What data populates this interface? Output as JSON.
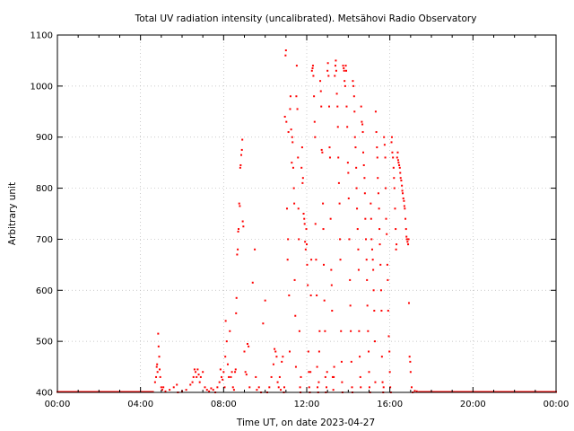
{
  "chart_data": {
    "type": "scatter",
    "title": "Total UV radiation intensity (uncalibrated). Metsähovi Radio Observatory",
    "xlabel": "Time UT, on date 2023-04-27",
    "ylabel": "Arbitrary unit",
    "xlim_hours": [
      0,
      24
    ],
    "ylim": [
      400,
      1100
    ],
    "x_ticks": [
      {
        "hour": 0,
        "label": "00:00"
      },
      {
        "hour": 4,
        "label": "04:00"
      },
      {
        "hour": 8,
        "label": "08:00"
      },
      {
        "hour": 12,
        "label": "12:00"
      },
      {
        "hour": 16,
        "label": "16:00"
      },
      {
        "hour": 20,
        "label": "20:00"
      },
      {
        "hour": 24,
        "label": "00:00"
      }
    ],
    "y_ticks": [
      400,
      500,
      600,
      700,
      800,
      900,
      1000,
      1100
    ],
    "grid": true,
    "marker_color": "#ff0000",
    "baseline_value": 400,
    "baseline_intervals_hours": [
      [
        0,
        4.6
      ],
      [
        17.4,
        24
      ]
    ],
    "points": [
      [
        4.7,
        420
      ],
      [
        4.75,
        430
      ],
      [
        4.78,
        450
      ],
      [
        4.8,
        455
      ],
      [
        4.82,
        440
      ],
      [
        4.85,
        515
      ],
      [
        4.87,
        490
      ],
      [
        4.9,
        470
      ],
      [
        4.92,
        445
      ],
      [
        4.95,
        430
      ],
      [
        5.0,
        410
      ],
      [
        5.05,
        405
      ],
      [
        5.1,
        410
      ],
      [
        5.2,
        402
      ],
      [
        5.4,
        405
      ],
      [
        5.6,
        410
      ],
      [
        5.75,
        415
      ],
      [
        5.8,
        400
      ],
      [
        6.0,
        402
      ],
      [
        6.2,
        405
      ],
      [
        6.4,
        415
      ],
      [
        6.5,
        420
      ],
      [
        6.55,
        430
      ],
      [
        6.6,
        445
      ],
      [
        6.65,
        440
      ],
      [
        6.7,
        430
      ],
      [
        6.75,
        445
      ],
      [
        6.8,
        435
      ],
      [
        6.85,
        420
      ],
      [
        6.9,
        430
      ],
      [
        7.0,
        440
      ],
      [
        7.1,
        410
      ],
      [
        7.2,
        405
      ],
      [
        7.3,
        402
      ],
      [
        7.4,
        408
      ],
      [
        7.5,
        405
      ],
      [
        7.6,
        400
      ],
      [
        7.7,
        410
      ],
      [
        7.8,
        420
      ],
      [
        7.85,
        445
      ],
      [
        7.9,
        430
      ],
      [
        7.95,
        425
      ],
      [
        8.0,
        440
      ],
      [
        8.05,
        410
      ],
      [
        8.08,
        470
      ],
      [
        8.1,
        540
      ],
      [
        8.15,
        500
      ],
      [
        8.2,
        455
      ],
      [
        8.25,
        430
      ],
      [
        8.3,
        520
      ],
      [
        8.35,
        430
      ],
      [
        8.4,
        440
      ],
      [
        8.45,
        410
      ],
      [
        8.5,
        405
      ],
      [
        8.55,
        440
      ],
      [
        8.58,
        445
      ],
      [
        8.6,
        555
      ],
      [
        8.62,
        585
      ],
      [
        8.65,
        670
      ],
      [
        8.68,
        680
      ],
      [
        8.7,
        715
      ],
      [
        8.72,
        720
      ],
      [
        8.75,
        770
      ],
      [
        8.78,
        765
      ],
      [
        8.8,
        840
      ],
      [
        8.82,
        845
      ],
      [
        8.85,
        865
      ],
      [
        8.88,
        875
      ],
      [
        8.9,
        895
      ],
      [
        8.92,
        735
      ],
      [
        8.95,
        725
      ],
      [
        9.0,
        480
      ],
      [
        9.05,
        440
      ],
      [
        9.1,
        435
      ],
      [
        9.15,
        495
      ],
      [
        9.2,
        490
      ],
      [
        9.25,
        410
      ],
      [
        9.4,
        615
      ],
      [
        9.5,
        680
      ],
      [
        9.55,
        430
      ],
      [
        9.6,
        405
      ],
      [
        9.7,
        410
      ],
      [
        9.8,
        400
      ],
      [
        9.9,
        535
      ],
      [
        10.0,
        580
      ],
      [
        10.1,
        400
      ],
      [
        10.2,
        410
      ],
      [
        10.3,
        430
      ],
      [
        10.4,
        455
      ],
      [
        10.45,
        485
      ],
      [
        10.5,
        480
      ],
      [
        10.55,
        470
      ],
      [
        10.6,
        420
      ],
      [
        10.65,
        410
      ],
      [
        10.7,
        430
      ],
      [
        10.75,
        405
      ],
      [
        10.8,
        460
      ],
      [
        10.85,
        470
      ],
      [
        10.9,
        400
      ],
      [
        10.92,
        410
      ],
      [
        10.95,
        940
      ],
      [
        10.98,
        1060
      ],
      [
        11.0,
        1070
      ],
      [
        11.02,
        930
      ],
      [
        11.05,
        760
      ],
      [
        11.08,
        660
      ],
      [
        11.1,
        700
      ],
      [
        11.12,
        910
      ],
      [
        11.15,
        590
      ],
      [
        11.18,
        480
      ],
      [
        11.2,
        955
      ],
      [
        11.22,
        980
      ],
      [
        11.25,
        915
      ],
      [
        11.28,
        850
      ],
      [
        11.3,
        900
      ],
      [
        11.32,
        890
      ],
      [
        11.35,
        840
      ],
      [
        11.38,
        800
      ],
      [
        11.4,
        770
      ],
      [
        11.42,
        620
      ],
      [
        11.45,
        550
      ],
      [
        11.48,
        450
      ],
      [
        11.5,
        980
      ],
      [
        11.52,
        1040
      ],
      [
        11.55,
        955
      ],
      [
        11.58,
        860
      ],
      [
        11.6,
        760
      ],
      [
        11.62,
        700
      ],
      [
        11.65,
        520
      ],
      [
        11.68,
        410
      ],
      [
        11.7,
        400
      ],
      [
        11.72,
        430
      ],
      [
        11.75,
        840
      ],
      [
        11.78,
        880
      ],
      [
        11.8,
        810
      ],
      [
        11.82,
        820
      ],
      [
        11.85,
        750
      ],
      [
        11.88,
        740
      ],
      [
        11.9,
        730
      ],
      [
        11.92,
        695
      ],
      [
        11.95,
        680
      ],
      [
        11.98,
        720
      ],
      [
        12.0,
        690
      ],
      [
        12.02,
        650
      ],
      [
        12.05,
        610
      ],
      [
        12.08,
        480
      ],
      [
        12.1,
        440
      ],
      [
        12.12,
        410
      ],
      [
        12.15,
        400
      ],
      [
        12.18,
        440
      ],
      [
        12.2,
        590
      ],
      [
        12.22,
        660
      ],
      [
        12.25,
        1030
      ],
      [
        12.28,
        1035
      ],
      [
        12.3,
        1040
      ],
      [
        12.32,
        1020
      ],
      [
        12.35,
        980
      ],
      [
        12.38,
        930
      ],
      [
        12.4,
        900
      ],
      [
        12.42,
        730
      ],
      [
        12.45,
        660
      ],
      [
        12.48,
        590
      ],
      [
        12.5,
        450
      ],
      [
        12.52,
        410
      ],
      [
        12.55,
        400
      ],
      [
        12.58,
        420
      ],
      [
        12.6,
        480
      ],
      [
        12.62,
        520
      ],
      [
        12.65,
        1010
      ],
      [
        12.68,
        990
      ],
      [
        12.7,
        960
      ],
      [
        12.72,
        875
      ],
      [
        12.75,
        870
      ],
      [
        12.78,
        770
      ],
      [
        12.8,
        720
      ],
      [
        12.82,
        650
      ],
      [
        12.85,
        580
      ],
      [
        12.88,
        520
      ],
      [
        12.9,
        430
      ],
      [
        12.92,
        400
      ],
      [
        12.95,
        410
      ],
      [
        12.98,
        440
      ],
      [
        13.0,
        1030
      ],
      [
        13.02,
        1045
      ],
      [
        13.05,
        1020
      ],
      [
        13.08,
        960
      ],
      [
        13.1,
        880
      ],
      [
        13.12,
        860
      ],
      [
        13.15,
        740
      ],
      [
        13.18,
        640
      ],
      [
        13.2,
        610
      ],
      [
        13.22,
        560
      ],
      [
        13.25,
        430
      ],
      [
        13.28,
        405
      ],
      [
        13.3,
        430
      ],
      [
        13.32,
        450
      ],
      [
        13.35,
        1020
      ],
      [
        13.38,
        1040
      ],
      [
        13.4,
        1050
      ],
      [
        13.42,
        1030
      ],
      [
        13.45,
        985
      ],
      [
        13.48,
        960
      ],
      [
        13.5,
        920
      ],
      [
        13.52,
        860
      ],
      [
        13.55,
        810
      ],
      [
        13.58,
        770
      ],
      [
        13.6,
        700
      ],
      [
        13.62,
        660
      ],
      [
        13.65,
        520
      ],
      [
        13.68,
        460
      ],
      [
        13.7,
        420
      ],
      [
        13.72,
        400
      ],
      [
        13.75,
        1040
      ],
      [
        13.78,
        1035
      ],
      [
        13.8,
        1030
      ],
      [
        13.82,
        1010
      ],
      [
        13.85,
        1000
      ],
      [
        13.88,
        1040
      ],
      [
        13.9,
        1030
      ],
      [
        13.92,
        960
      ],
      [
        13.95,
        920
      ],
      [
        13.98,
        850
      ],
      [
        14.0,
        830
      ],
      [
        14.02,
        780
      ],
      [
        14.05,
        700
      ],
      [
        14.08,
        620
      ],
      [
        14.1,
        570
      ],
      [
        14.12,
        520
      ],
      [
        14.15,
        460
      ],
      [
        14.18,
        410
      ],
      [
        14.2,
        400
      ],
      [
        14.22,
        1010
      ],
      [
        14.25,
        1000
      ],
      [
        14.28,
        980
      ],
      [
        14.3,
        950
      ],
      [
        14.32,
        900
      ],
      [
        14.35,
        880
      ],
      [
        14.38,
        840
      ],
      [
        14.4,
        800
      ],
      [
        14.42,
        760
      ],
      [
        14.45,
        720
      ],
      [
        14.48,
        680
      ],
      [
        14.5,
        640
      ],
      [
        14.52,
        520
      ],
      [
        14.55,
        470
      ],
      [
        14.58,
        430
      ],
      [
        14.6,
        410
      ],
      [
        14.62,
        960
      ],
      [
        14.65,
        930
      ],
      [
        14.68,
        925
      ],
      [
        14.7,
        910
      ],
      [
        14.72,
        870
      ],
      [
        14.75,
        845
      ],
      [
        14.78,
        820
      ],
      [
        14.8,
        790
      ],
      [
        14.82,
        740
      ],
      [
        14.85,
        700
      ],
      [
        14.88,
        660
      ],
      [
        14.9,
        620
      ],
      [
        14.92,
        570
      ],
      [
        14.95,
        520
      ],
      [
        14.98,
        480
      ],
      [
        15.0,
        440
      ],
      [
        15.02,
        410
      ],
      [
        15.05,
        400
      ],
      [
        15.08,
        770
      ],
      [
        15.1,
        740
      ],
      [
        15.12,
        700
      ],
      [
        15.15,
        680
      ],
      [
        15.18,
        660
      ],
      [
        15.2,
        640
      ],
      [
        15.22,
        600
      ],
      [
        15.25,
        560
      ],
      [
        15.28,
        500
      ],
      [
        15.3,
        420
      ],
      [
        15.32,
        950
      ],
      [
        15.35,
        910
      ],
      [
        15.38,
        880
      ],
      [
        15.4,
        860
      ],
      [
        15.42,
        820
      ],
      [
        15.45,
        790
      ],
      [
        15.48,
        760
      ],
      [
        15.5,
        720
      ],
      [
        15.52,
        690
      ],
      [
        15.55,
        650
      ],
      [
        15.58,
        600
      ],
      [
        15.6,
        560
      ],
      [
        15.62,
        470
      ],
      [
        15.65,
        420
      ],
      [
        15.68,
        400
      ],
      [
        15.7,
        410
      ],
      [
        15.72,
        900
      ],
      [
        15.75,
        885
      ],
      [
        15.78,
        860
      ],
      [
        15.8,
        800
      ],
      [
        15.82,
        740
      ],
      [
        15.85,
        710
      ],
      [
        15.88,
        650
      ],
      [
        15.9,
        620
      ],
      [
        15.92,
        560
      ],
      [
        15.95,
        510
      ],
      [
        15.98,
        480
      ],
      [
        16.0,
        440
      ],
      [
        16.02,
        410
      ],
      [
        16.05,
        400
      ],
      [
        16.08,
        890
      ],
      [
        16.1,
        900
      ],
      [
        16.12,
        870
      ],
      [
        16.15,
        860
      ],
      [
        16.18,
        840
      ],
      [
        16.2,
        820
      ],
      [
        16.22,
        800
      ],
      [
        16.25,
        760
      ],
      [
        16.28,
        720
      ],
      [
        16.3,
        680
      ],
      [
        16.32,
        690
      ],
      [
        16.35,
        860
      ],
      [
        16.38,
        870
      ],
      [
        16.4,
        855
      ],
      [
        16.42,
        850
      ],
      [
        16.45,
        845
      ],
      [
        16.48,
        840
      ],
      [
        16.5,
        830
      ],
      [
        16.52,
        820
      ],
      [
        16.55,
        815
      ],
      [
        16.58,
        805
      ],
      [
        16.6,
        795
      ],
      [
        16.62,
        790
      ],
      [
        16.65,
        780
      ],
      [
        16.68,
        775
      ],
      [
        16.7,
        765
      ],
      [
        16.72,
        760
      ],
      [
        16.75,
        740
      ],
      [
        16.78,
        720
      ],
      [
        16.8,
        705
      ],
      [
        16.82,
        700
      ],
      [
        16.85,
        695
      ],
      [
        16.88,
        690
      ],
      [
        16.9,
        700
      ],
      [
        16.92,
        575
      ],
      [
        16.95,
        470
      ],
      [
        16.98,
        460
      ],
      [
        17.0,
        440
      ],
      [
        17.05,
        410
      ],
      [
        17.1,
        400
      ],
      [
        17.2,
        403
      ],
      [
        17.3,
        402
      ]
    ]
  }
}
